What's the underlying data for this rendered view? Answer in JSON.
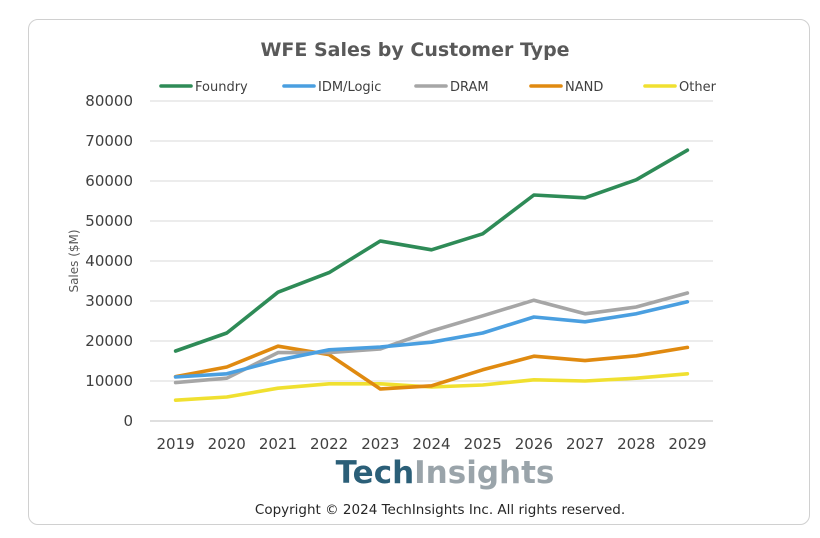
{
  "chart_data": {
    "type": "line",
    "title": "WFE Sales by Customer Type",
    "xlabel": "",
    "ylabel": "Sales ($M)",
    "categories": [
      "2019",
      "2020",
      "2021",
      "2022",
      "2023",
      "2024",
      "2025",
      "2026",
      "2027",
      "2028",
      "2029"
    ],
    "ylim": [
      0,
      80000
    ],
    "yticks": [
      "0",
      "10000",
      "20000",
      "30000",
      "40000",
      "50000",
      "60000",
      "70000",
      "80000"
    ],
    "grid": true,
    "legend": "top",
    "series": [
      {
        "name": "Foundry",
        "color": "#2e8b57",
        "values": [
          17500,
          22000,
          32200,
          37100,
          45000,
          42800,
          46800,
          56500,
          55800,
          60300,
          67700
        ]
      },
      {
        "name": "IDM/Logic",
        "color": "#4a9fe0",
        "values": [
          11000,
          11800,
          15200,
          17800,
          18500,
          19700,
          22000,
          26000,
          24800,
          26800,
          29800
        ]
      },
      {
        "name": "DRAM",
        "color": "#a6a6a6",
        "values": [
          9600,
          10700,
          17100,
          17100,
          18000,
          22500,
          26300,
          30200,
          26800,
          28500,
          32000
        ]
      },
      {
        "name": "NAND",
        "color": "#e08a10",
        "values": [
          11100,
          13500,
          18700,
          16600,
          8000,
          8800,
          12800,
          16200,
          15100,
          16300,
          18400
        ]
      },
      {
        "name": "Other",
        "color": "#f0e030",
        "values": [
          5200,
          6000,
          8200,
          9300,
          9300,
          8500,
          9000,
          10300,
          10000,
          10700,
          11800
        ]
      }
    ]
  },
  "branding": {
    "logo_part1": "Tech",
    "logo_part2": "Insights",
    "copyright": "Copyright © 2024 TechInsights Inc.  All rights reserved."
  }
}
